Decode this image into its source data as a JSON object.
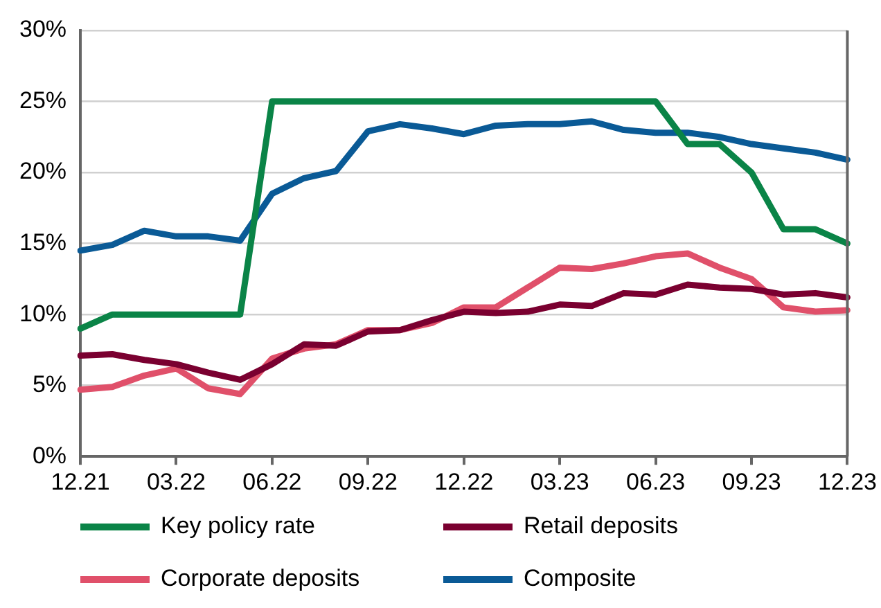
{
  "chart_data": {
    "type": "line",
    "categories": [
      "12.21",
      null,
      null,
      "03.22",
      null,
      null,
      "06.22",
      null,
      null,
      "09.22",
      null,
      null,
      "12.22",
      null,
      null,
      "03.23",
      null,
      null,
      "06.23",
      null,
      null,
      "09.23",
      null,
      null,
      "12.23"
    ],
    "series": [
      {
        "name": "Key policy rate",
        "color": "#0a8447",
        "values": [
          9,
          10,
          10,
          10,
          10,
          10,
          25,
          25,
          25,
          25,
          25,
          25,
          25,
          25,
          25,
          25,
          25,
          25,
          25,
          22,
          22,
          20,
          16,
          16,
          15
        ]
      },
      {
        "name": "Retail deposits",
        "color": "#7a0030",
        "values": [
          7.1,
          7.2,
          6.8,
          6.5,
          5.9,
          5.4,
          6.5,
          7.9,
          7.8,
          8.8,
          8.9,
          9.6,
          10.2,
          10.1,
          10.2,
          10.7,
          10.6,
          11.5,
          11.4,
          12.1,
          11.9,
          11.8,
          11.4,
          11.5,
          11.2
        ]
      },
      {
        "name": "Corporate deposits",
        "color": "#e0506a",
        "values": [
          4.7,
          4.9,
          5.7,
          6.2,
          4.8,
          4.4,
          6.9,
          7.6,
          7.9,
          8.9,
          8.9,
          9.4,
          10.5,
          10.5,
          11.9,
          13.3,
          13.2,
          13.6,
          14.1,
          14.3,
          13.3,
          12.5,
          10.5,
          10.2,
          10.3
        ]
      },
      {
        "name": "Composite",
        "color": "#0a5a96",
        "values": [
          14.5,
          14.9,
          15.9,
          15.5,
          15.5,
          15.2,
          18.5,
          19.6,
          20.1,
          22.9,
          23.4,
          23.1,
          22.7,
          23.3,
          23.4,
          23.4,
          23.6,
          23.0,
          22.8,
          22.8,
          22.5,
          22.0,
          21.7,
          21.4,
          20.9
        ]
      }
    ],
    "ylim": [
      0,
      30
    ],
    "yticks": [
      {
        "value": 0,
        "label": "0%"
      },
      {
        "value": 5,
        "label": "5%"
      },
      {
        "value": 10,
        "label": "10%"
      },
      {
        "value": 15,
        "label": "15%"
      },
      {
        "value": 20,
        "label": "20%"
      },
      {
        "value": 25,
        "label": "25%"
      },
      {
        "value": 30,
        "label": "30%"
      }
    ],
    "grid": "y",
    "legend": "bottom",
    "marker": "none",
    "line_style": "solid"
  }
}
